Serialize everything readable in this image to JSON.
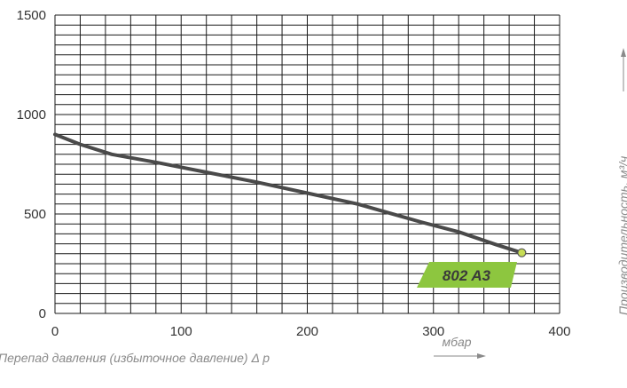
{
  "chart_data": {
    "type": "line",
    "series": [
      {
        "name": "802 A3",
        "x": [
          0,
          20,
          45,
          80,
          120,
          160,
          200,
          240,
          265,
          290,
          320,
          350,
          370
        ],
        "y": [
          900,
          850,
          800,
          760,
          710,
          660,
          605,
          550,
          505,
          460,
          410,
          345,
          305
        ]
      }
    ],
    "end_marker": {
      "x": 370,
      "y": 305
    },
    "xlim": [
      0,
      400
    ],
    "ylim": [
      0,
      1500
    ],
    "x_ticks": [
      0,
      100,
      200,
      300,
      400
    ],
    "y_ticks": [
      0,
      500,
      1000,
      1500
    ],
    "x_grid_step": 20,
    "y_grid_step": 50,
    "grid": true,
    "xlabel": "Перепад давления (избыточное давление) Δ p",
    "xunit": "мбар",
    "ylabel": "Производительность, м³/ч",
    "colors": {
      "line": "#4a4a4a",
      "grid": "#1a1a1a",
      "marker_fill": "#c7dd55",
      "badge": "#8dc63f"
    }
  }
}
